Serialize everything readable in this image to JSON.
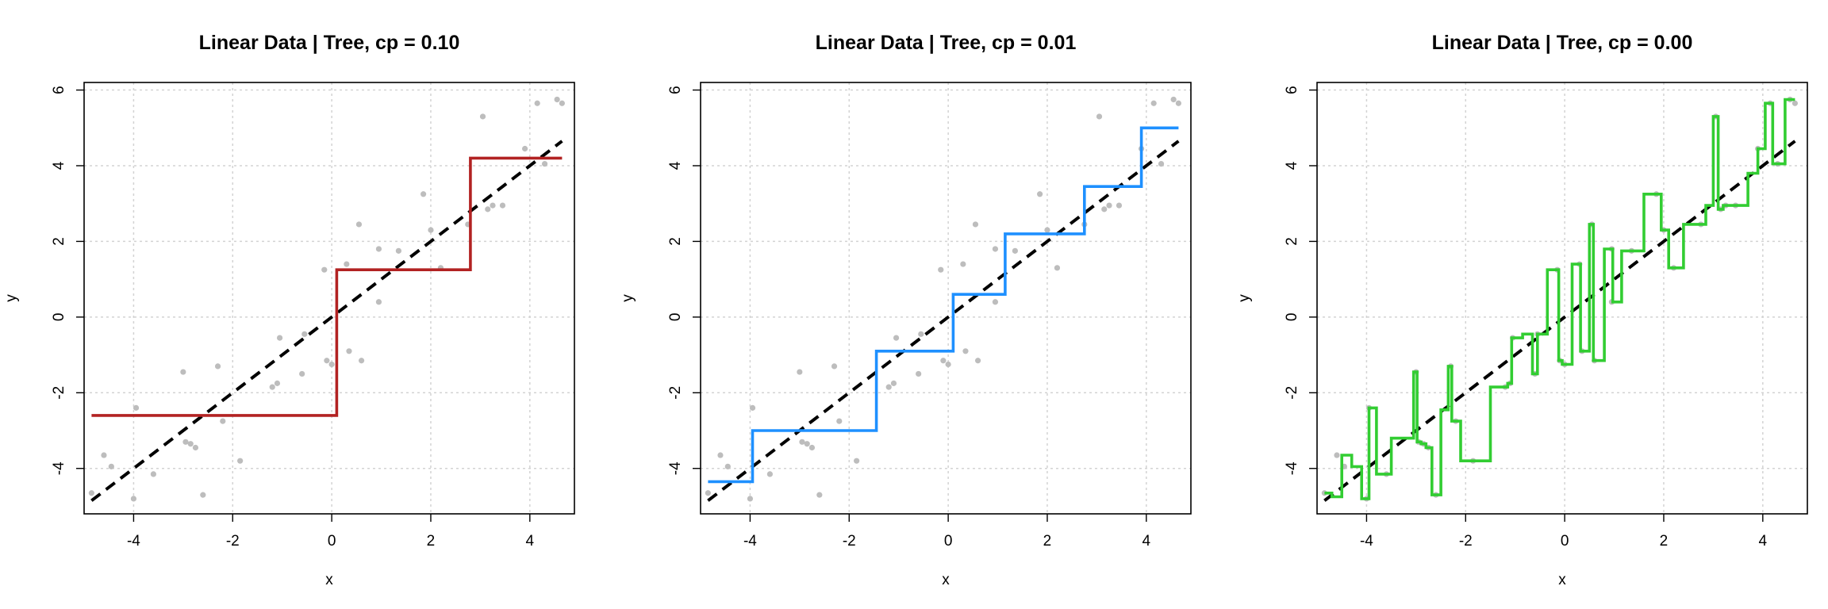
{
  "chart_data": [
    {
      "type": "line",
      "title": "Linear Data | Tree, cp = 0.10",
      "xlabel": "x",
      "ylabel": "y",
      "xlim": [
        -5.0,
        4.9
      ],
      "ylim": [
        -5.2,
        6.2
      ],
      "xticks": [
        -4,
        -2,
        0,
        2,
        4
      ],
      "yticks": [
        -4,
        -2,
        0,
        2,
        4,
        6
      ],
      "grid": true,
      "color": "#b22222",
      "points": [
        [
          -4.85,
          -4.65
        ],
        [
          -4.6,
          -3.65
        ],
        [
          -4.45,
          -3.95
        ],
        [
          -4.0,
          -4.8
        ],
        [
          -3.95,
          -2.4
        ],
        [
          -3.6,
          -4.15
        ],
        [
          -3.0,
          -1.45
        ],
        [
          -2.95,
          -3.3
        ],
        [
          -2.85,
          -3.35
        ],
        [
          -2.75,
          -3.45
        ],
        [
          -2.6,
          -4.7
        ],
        [
          -2.3,
          -1.3
        ],
        [
          -2.2,
          -2.75
        ],
        [
          -1.85,
          -3.8
        ],
        [
          -1.2,
          -1.85
        ],
        [
          -1.1,
          -1.75
        ],
        [
          -1.05,
          -0.55
        ],
        [
          -0.6,
          -1.5
        ],
        [
          -0.55,
          -0.45
        ],
        [
          -0.15,
          1.25
        ],
        [
          -0.1,
          -1.15
        ],
        [
          0.0,
          -1.25
        ],
        [
          0.3,
          1.4
        ],
        [
          0.35,
          -0.9
        ],
        [
          0.55,
          2.45
        ],
        [
          0.6,
          -1.15
        ],
        [
          0.95,
          1.8
        ],
        [
          0.95,
          0.4
        ],
        [
          1.35,
          1.75
        ],
        [
          1.85,
          3.25
        ],
        [
          2.0,
          2.3
        ],
        [
          2.2,
          1.3
        ],
        [
          2.75,
          2.45
        ],
        [
          3.05,
          5.3
        ],
        [
          3.15,
          2.85
        ],
        [
          3.25,
          2.95
        ],
        [
          3.45,
          2.95
        ],
        [
          3.9,
          4.45
        ],
        [
          4.15,
          5.65
        ],
        [
          4.3,
          4.05
        ],
        [
          4.55,
          5.75
        ],
        [
          4.65,
          5.65
        ]
      ],
      "truth_line": [
        [
          -4.85,
          -4.85
        ],
        [
          4.65,
          4.65
        ]
      ],
      "fit": [
        [
          -4.85,
          -2.6
        ],
        [
          0.1,
          -2.6
        ],
        [
          0.1,
          1.25
        ],
        [
          2.8,
          1.25
        ],
        [
          2.8,
          4.2
        ],
        [
          4.65,
          4.2
        ]
      ]
    },
    {
      "type": "line",
      "title": "Linear Data | Tree, cp = 0.01",
      "xlabel": "x",
      "ylabel": "y",
      "xlim": [
        -5.0,
        4.9
      ],
      "ylim": [
        -5.2,
        6.2
      ],
      "xticks": [
        -4,
        -2,
        0,
        2,
        4
      ],
      "yticks": [
        -4,
        -2,
        0,
        2,
        4,
        6
      ],
      "grid": true,
      "color": "#1e90ff",
      "points": [
        [
          -4.85,
          -4.65
        ],
        [
          -4.6,
          -3.65
        ],
        [
          -4.45,
          -3.95
        ],
        [
          -4.0,
          -4.8
        ],
        [
          -3.95,
          -2.4
        ],
        [
          -3.6,
          -4.15
        ],
        [
          -3.0,
          -1.45
        ],
        [
          -2.95,
          -3.3
        ],
        [
          -2.85,
          -3.35
        ],
        [
          -2.75,
          -3.45
        ],
        [
          -2.6,
          -4.7
        ],
        [
          -2.3,
          -1.3
        ],
        [
          -2.2,
          -2.75
        ],
        [
          -1.85,
          -3.8
        ],
        [
          -1.2,
          -1.85
        ],
        [
          -1.1,
          -1.75
        ],
        [
          -1.05,
          -0.55
        ],
        [
          -0.6,
          -1.5
        ],
        [
          -0.55,
          -0.45
        ],
        [
          -0.15,
          1.25
        ],
        [
          -0.1,
          -1.15
        ],
        [
          0.0,
          -1.25
        ],
        [
          0.3,
          1.4
        ],
        [
          0.35,
          -0.9
        ],
        [
          0.55,
          2.45
        ],
        [
          0.6,
          -1.15
        ],
        [
          0.95,
          1.8
        ],
        [
          0.95,
          0.4
        ],
        [
          1.35,
          1.75
        ],
        [
          1.85,
          3.25
        ],
        [
          2.0,
          2.3
        ],
        [
          2.2,
          1.3
        ],
        [
          2.75,
          2.45
        ],
        [
          3.05,
          5.3
        ],
        [
          3.15,
          2.85
        ],
        [
          3.25,
          2.95
        ],
        [
          3.45,
          2.95
        ],
        [
          3.9,
          4.45
        ],
        [
          4.15,
          5.65
        ],
        [
          4.3,
          4.05
        ],
        [
          4.55,
          5.75
        ],
        [
          4.65,
          5.65
        ]
      ],
      "truth_line": [
        [
          -4.85,
          -4.85
        ],
        [
          4.65,
          4.65
        ]
      ],
      "fit": [
        [
          -4.85,
          -4.35
        ],
        [
          -3.95,
          -4.35
        ],
        [
          -3.95,
          -3.0
        ],
        [
          -1.45,
          -3.0
        ],
        [
          -1.45,
          -0.9
        ],
        [
          0.1,
          -0.9
        ],
        [
          0.1,
          0.6
        ],
        [
          1.15,
          0.6
        ],
        [
          1.15,
          2.2
        ],
        [
          2.75,
          2.2
        ],
        [
          2.75,
          3.45
        ],
        [
          3.9,
          3.45
        ],
        [
          3.9,
          5.0
        ],
        [
          4.65,
          5.0
        ]
      ]
    },
    {
      "type": "line",
      "title": "Linear Data | Tree, cp = 0.00",
      "xlabel": "x",
      "ylabel": "y",
      "xlim": [
        -5.0,
        4.9
      ],
      "ylim": [
        -5.2,
        6.2
      ],
      "xticks": [
        -4,
        -2,
        0,
        2,
        4
      ],
      "yticks": [
        -4,
        -2,
        0,
        2,
        4,
        6
      ],
      "grid": true,
      "color": "#32cd32",
      "points": [
        [
          -4.85,
          -4.65
        ],
        [
          -4.6,
          -3.65
        ],
        [
          -4.45,
          -3.95
        ],
        [
          -4.0,
          -4.8
        ],
        [
          -3.95,
          -2.4
        ],
        [
          -3.6,
          -4.15
        ],
        [
          -3.0,
          -1.45
        ],
        [
          -2.95,
          -3.3
        ],
        [
          -2.85,
          -3.35
        ],
        [
          -2.75,
          -3.45
        ],
        [
          -2.6,
          -4.7
        ],
        [
          -2.3,
          -1.3
        ],
        [
          -2.2,
          -2.75
        ],
        [
          -1.85,
          -3.8
        ],
        [
          -1.2,
          -1.85
        ],
        [
          -1.1,
          -1.75
        ],
        [
          -1.05,
          -0.55
        ],
        [
          -0.6,
          -1.5
        ],
        [
          -0.55,
          -0.45
        ],
        [
          -0.15,
          1.25
        ],
        [
          -0.1,
          -1.15
        ],
        [
          0.0,
          -1.25
        ],
        [
          0.3,
          1.4
        ],
        [
          0.35,
          -0.9
        ],
        [
          0.55,
          2.45
        ],
        [
          0.6,
          -1.15
        ],
        [
          0.95,
          1.8
        ],
        [
          0.95,
          0.4
        ],
        [
          1.35,
          1.75
        ],
        [
          1.85,
          3.25
        ],
        [
          2.0,
          2.3
        ],
        [
          2.2,
          1.3
        ],
        [
          2.75,
          2.45
        ],
        [
          3.05,
          5.3
        ],
        [
          3.15,
          2.85
        ],
        [
          3.25,
          2.95
        ],
        [
          3.45,
          2.95
        ],
        [
          3.9,
          4.45
        ],
        [
          4.15,
          5.65
        ],
        [
          4.3,
          4.05
        ],
        [
          4.55,
          5.75
        ],
        [
          4.65,
          5.65
        ]
      ],
      "truth_line": [
        [
          -4.85,
          -4.85
        ],
        [
          4.65,
          4.65
        ]
      ],
      "fit": [
        [
          -4.85,
          -4.65
        ],
        [
          -4.7,
          -4.65
        ],
        [
          -4.7,
          -4.75
        ],
        [
          -4.5,
          -4.75
        ],
        [
          -4.5,
          -3.65
        ],
        [
          -4.3,
          -3.65
        ],
        [
          -4.3,
          -3.95
        ],
        [
          -4.1,
          -3.95
        ],
        [
          -4.1,
          -4.8
        ],
        [
          -3.95,
          -4.8
        ],
        [
          -3.95,
          -2.4
        ],
        [
          -3.8,
          -2.4
        ],
        [
          -3.8,
          -4.15
        ],
        [
          -3.5,
          -4.15
        ],
        [
          -3.5,
          -3.2
        ],
        [
          -3.05,
          -3.2
        ],
        [
          -3.05,
          -1.45
        ],
        [
          -2.98,
          -1.45
        ],
        [
          -2.98,
          -3.3
        ],
        [
          -2.9,
          -3.3
        ],
        [
          -2.9,
          -3.35
        ],
        [
          -2.8,
          -3.35
        ],
        [
          -2.8,
          -3.45
        ],
        [
          -2.68,
          -3.45
        ],
        [
          -2.68,
          -4.7
        ],
        [
          -2.5,
          -4.7
        ],
        [
          -2.5,
          -2.45
        ],
        [
          -2.35,
          -2.45
        ],
        [
          -2.35,
          -1.3
        ],
        [
          -2.28,
          -1.3
        ],
        [
          -2.28,
          -2.75
        ],
        [
          -2.1,
          -2.75
        ],
        [
          -2.1,
          -3.8
        ],
        [
          -1.5,
          -3.8
        ],
        [
          -1.5,
          -1.85
        ],
        [
          -1.15,
          -1.85
        ],
        [
          -1.15,
          -1.75
        ],
        [
          -1.07,
          -1.75
        ],
        [
          -1.07,
          -0.55
        ],
        [
          -0.85,
          -0.55
        ],
        [
          -0.85,
          -0.45
        ],
        [
          -0.65,
          -0.45
        ],
        [
          -0.65,
          -1.5
        ],
        [
          -0.55,
          -1.5
        ],
        [
          -0.55,
          -0.45
        ],
        [
          -0.35,
          -0.45
        ],
        [
          -0.35,
          1.25
        ],
        [
          -0.12,
          1.25
        ],
        [
          -0.12,
          -1.15
        ],
        [
          -0.05,
          -1.15
        ],
        [
          -0.05,
          -1.25
        ],
        [
          0.15,
          -1.25
        ],
        [
          0.15,
          1.4
        ],
        [
          0.32,
          1.4
        ],
        [
          0.32,
          -0.9
        ],
        [
          0.5,
          -0.9
        ],
        [
          0.5,
          2.45
        ],
        [
          0.58,
          2.45
        ],
        [
          0.58,
          -1.15
        ],
        [
          0.8,
          -1.15
        ],
        [
          0.8,
          1.8
        ],
        [
          0.97,
          1.8
        ],
        [
          0.97,
          0.4
        ],
        [
          1.15,
          0.4
        ],
        [
          1.15,
          1.75
        ],
        [
          1.6,
          1.75
        ],
        [
          1.6,
          3.25
        ],
        [
          1.95,
          3.25
        ],
        [
          1.95,
          2.3
        ],
        [
          2.1,
          2.3
        ],
        [
          2.1,
          1.3
        ],
        [
          2.4,
          1.3
        ],
        [
          2.4,
          2.45
        ],
        [
          2.85,
          2.45
        ],
        [
          2.85,
          2.95
        ],
        [
          3.0,
          2.95
        ],
        [
          3.0,
          5.3
        ],
        [
          3.1,
          5.3
        ],
        [
          3.1,
          2.85
        ],
        [
          3.2,
          2.85
        ],
        [
          3.2,
          2.95
        ],
        [
          3.7,
          2.95
        ],
        [
          3.7,
          3.8
        ],
        [
          3.9,
          3.8
        ],
        [
          3.9,
          4.45
        ],
        [
          4.05,
          4.45
        ],
        [
          4.05,
          5.65
        ],
        [
          4.2,
          5.65
        ],
        [
          4.2,
          4.05
        ],
        [
          4.45,
          4.05
        ],
        [
          4.45,
          5.75
        ],
        [
          4.65,
          5.75
        ]
      ]
    }
  ]
}
